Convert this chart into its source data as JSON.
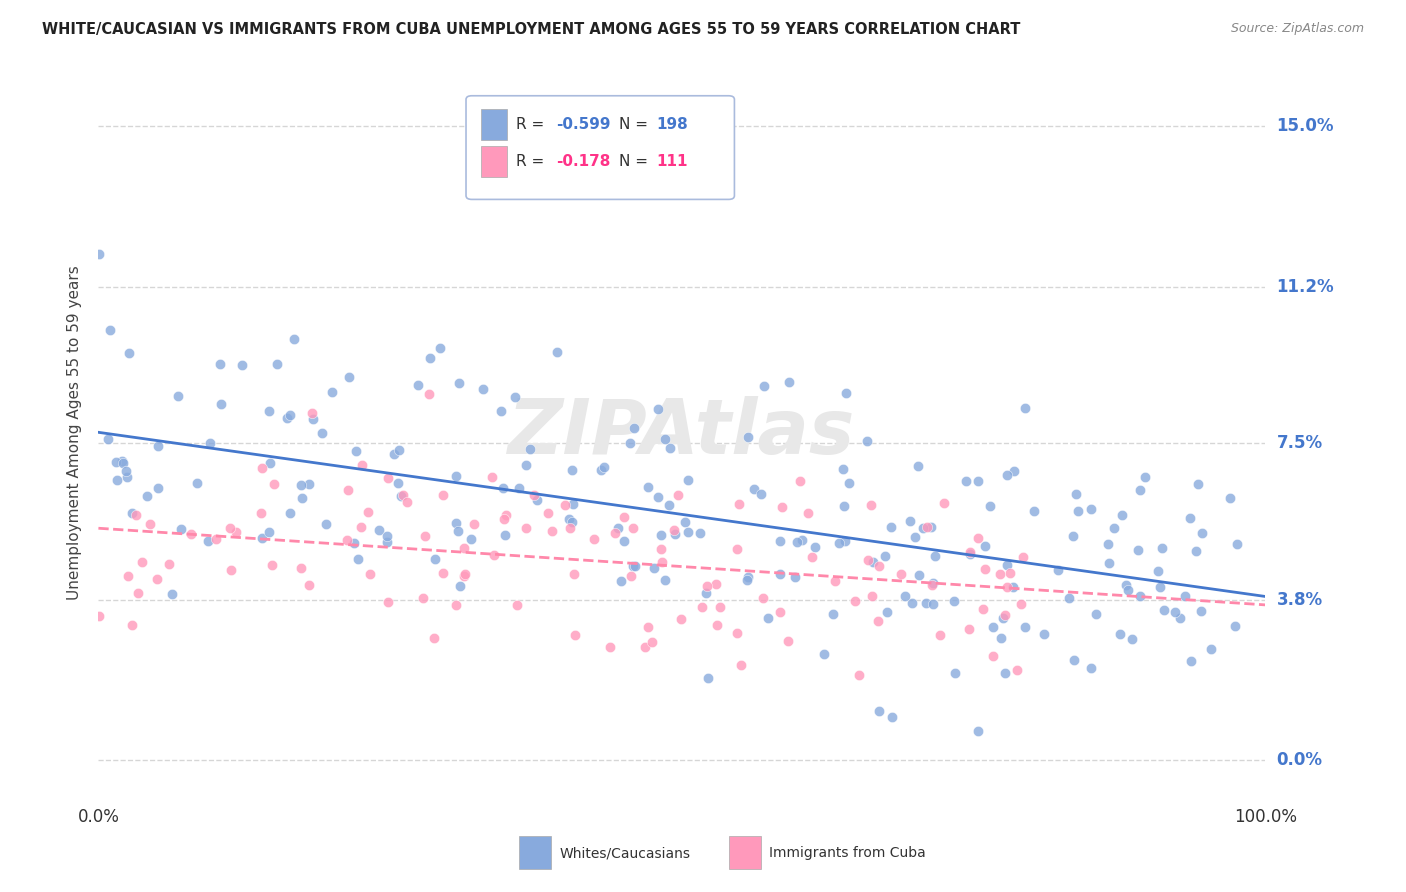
{
  "title": "WHITE/CAUCASIAN VS IMMIGRANTS FROM CUBA UNEMPLOYMENT AMONG AGES 55 TO 59 YEARS CORRELATION CHART",
  "source": "Source: ZipAtlas.com",
  "ylabel": "Unemployment Among Ages 55 to 59 years",
  "xlim": [
    0,
    100
  ],
  "ylim": [
    -1.0,
    16.5
  ],
  "ytick_labels": [
    "0.0%",
    "3.8%",
    "7.5%",
    "11.2%",
    "15.0%"
  ],
  "ytick_values": [
    0.0,
    3.8,
    7.5,
    11.2,
    15.0
  ],
  "xtick_labels": [
    "0.0%",
    "100.0%"
  ],
  "xtick_values": [
    0,
    100
  ],
  "blue_color": "#88aadd",
  "pink_color": "#ff99bb",
  "blue_line_color": "#4477cc",
  "pink_line_color": "#ff88aa",
  "watermark": "ZIPAtlas",
  "blue_R": -0.599,
  "blue_N": 198,
  "pink_R": -0.178,
  "pink_N": 111,
  "grid_color": "#cccccc",
  "background_color": "#ffffff",
  "legend_R_blue": "-0.599",
  "legend_N_blue": "198",
  "legend_R_pink": "-0.178",
  "legend_N_pink": "111",
  "legend_label_blue": "Whites/Caucasians",
  "legend_label_pink": "Immigrants from Cuba",
  "blue_intercept": 7.8,
  "blue_slope": -0.038,
  "pink_intercept": 5.5,
  "pink_slope": -0.022
}
